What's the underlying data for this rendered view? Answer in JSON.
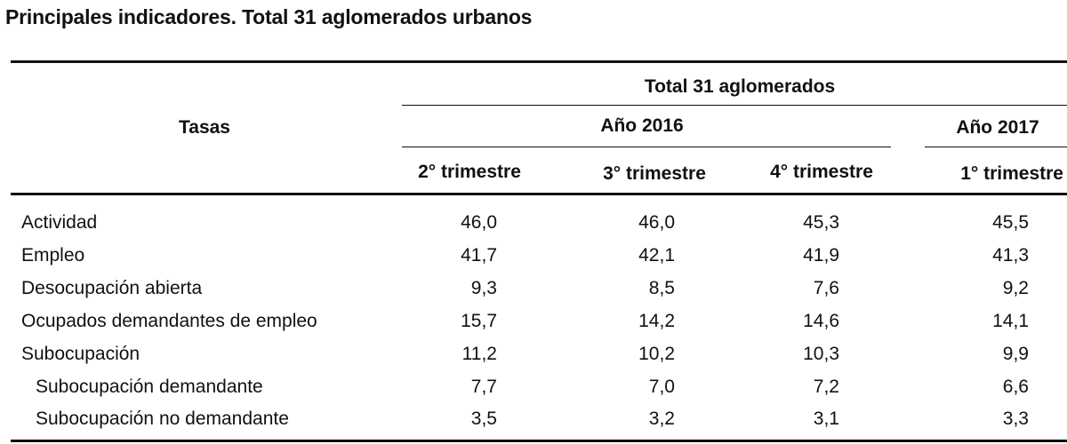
{
  "title": "Principales indicadores. Total 31 aglomerados urbanos",
  "header": {
    "row_label": "Tasas",
    "group": "Total 31 aglomerados",
    "years": [
      "Año 2016",
      "Año 2017"
    ],
    "quarters": [
      "2° trimestre",
      "3° trimestre",
      "4° trimestre",
      "1° trimestre"
    ]
  },
  "rows": [
    {
      "label": "Actividad",
      "values": [
        "46,0",
        "46,0",
        "45,3",
        "45,5"
      ]
    },
    {
      "label": "Empleo",
      "values": [
        "41,7",
        "42,1",
        "41,9",
        "41,3"
      ]
    },
    {
      "label": "Desocupación abierta",
      "values": [
        "9,3",
        "8,5",
        "7,6",
        "9,2"
      ]
    },
    {
      "label": "Ocupados demandantes de empleo",
      "values": [
        "15,7",
        "14,2",
        "14,6",
        "14,1"
      ]
    },
    {
      "label": "Subocupación",
      "values": [
        "11,2",
        "10,2",
        "10,3",
        "9,9"
      ]
    },
    {
      "label": "Subocupación demandante",
      "values": [
        "7,7",
        "7,0",
        "7,2",
        "6,6"
      ]
    },
    {
      "label": "Subocupación no demandante",
      "values": [
        "3,5",
        "3,2",
        "3,1",
        "3,3"
      ]
    }
  ]
}
